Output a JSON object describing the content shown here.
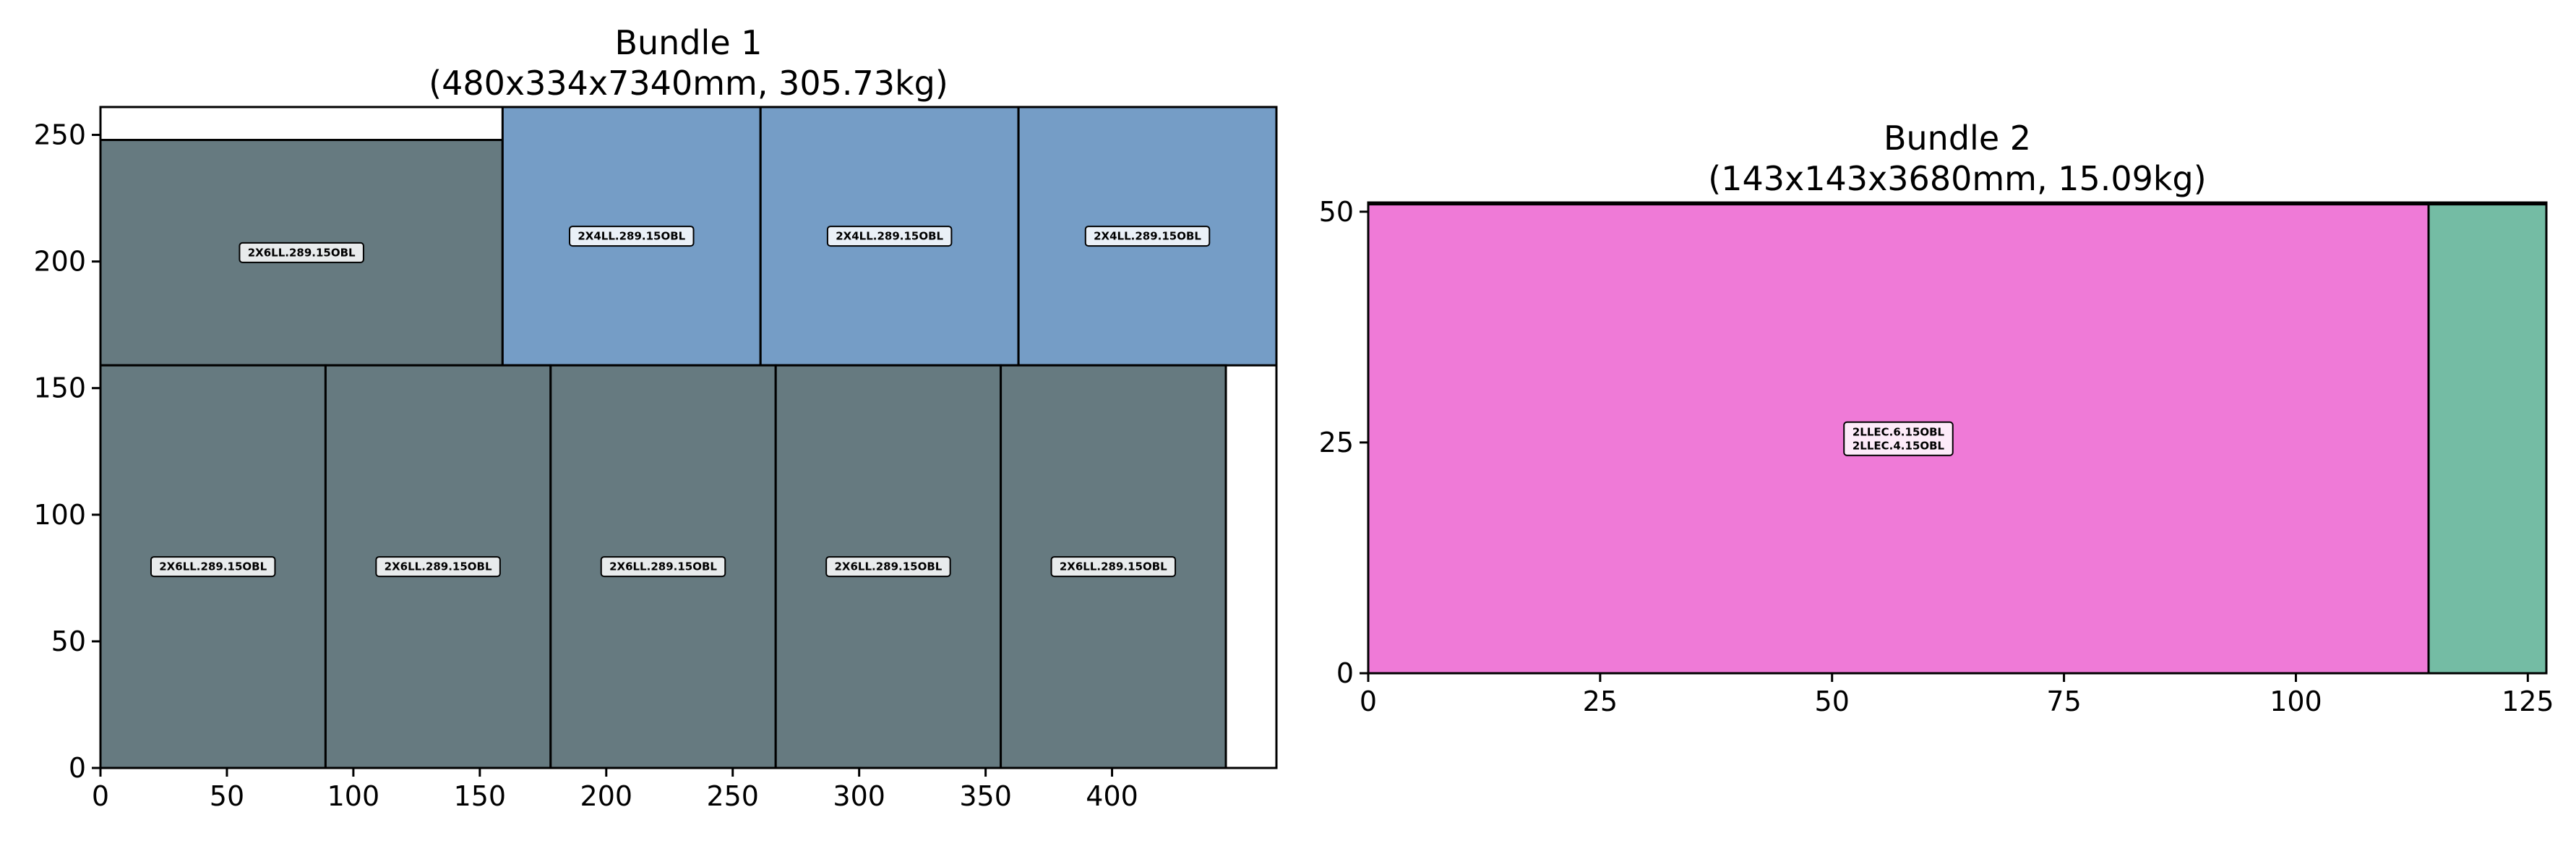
{
  "chart_data": [
    {
      "type": "rect-layout",
      "title_line1": "Bundle 1",
      "title_line2": "(480x334x7340mm, 305.73kg)",
      "xlim": [
        0,
        465
      ],
      "ylim": [
        0,
        261
      ],
      "xticks": [
        0,
        50,
        100,
        150,
        200,
        250,
        300,
        350,
        400
      ],
      "yticks": [
        0,
        50,
        100,
        150,
        200,
        250
      ],
      "rects": [
        {
          "x": 0,
          "y": 159,
          "w": 159,
          "h": 89,
          "color": "#667a80",
          "labels": [
            "2X6LL.289.15OBL"
          ]
        },
        {
          "x": 159,
          "y": 159,
          "w": 102,
          "h": 102,
          "color": "#759dc6",
          "labels": [
            "2X4LL.289.15OBL"
          ]
        },
        {
          "x": 261,
          "y": 159,
          "w": 102,
          "h": 102,
          "color": "#759dc6",
          "labels": [
            "2X4LL.289.15OBL"
          ]
        },
        {
          "x": 363,
          "y": 159,
          "w": 102,
          "h": 102,
          "color": "#759dc6",
          "labels": [
            "2X4LL.289.15OBL"
          ]
        },
        {
          "x": 0,
          "y": 0,
          "w": 89,
          "h": 159,
          "color": "#667a80",
          "labels": [
            "2X6LL.289.15OBL"
          ]
        },
        {
          "x": 89,
          "y": 0,
          "w": 89,
          "h": 159,
          "color": "#667a80",
          "labels": [
            "2X6LL.289.15OBL"
          ]
        },
        {
          "x": 178,
          "y": 0,
          "w": 89,
          "h": 159,
          "color": "#667a80",
          "labels": [
            "2X6LL.289.15OBL"
          ]
        },
        {
          "x": 267,
          "y": 0,
          "w": 89,
          "h": 159,
          "color": "#667a80",
          "labels": [
            "2X6LL.289.15OBL"
          ]
        },
        {
          "x": 356,
          "y": 0,
          "w": 89,
          "h": 159,
          "color": "#667a80",
          "labels": [
            "2X6LL.289.15OBL"
          ]
        }
      ]
    },
    {
      "type": "rect-layout",
      "title_line1": "Bundle 2",
      "title_line2": "(143x143x3680mm, 15.09kg)",
      "xlim": [
        0,
        127
      ],
      "ylim": [
        0,
        51
      ],
      "xticks": [
        0,
        25,
        50,
        75,
        100,
        125
      ],
      "yticks": [
        0,
        25,
        50
      ],
      "rects": [
        {
          "x": 0,
          "y": 0,
          "w": 114.3,
          "h": 50.8,
          "color": "#ef7ad7",
          "labels": [
            "2LLEC.6.15OBL",
            "2LLEC.4.15OBL"
          ]
        },
        {
          "x": 114.3,
          "y": 0,
          "w": 12.7,
          "h": 50.8,
          "color": "#74bca4",
          "labels": []
        }
      ]
    }
  ]
}
